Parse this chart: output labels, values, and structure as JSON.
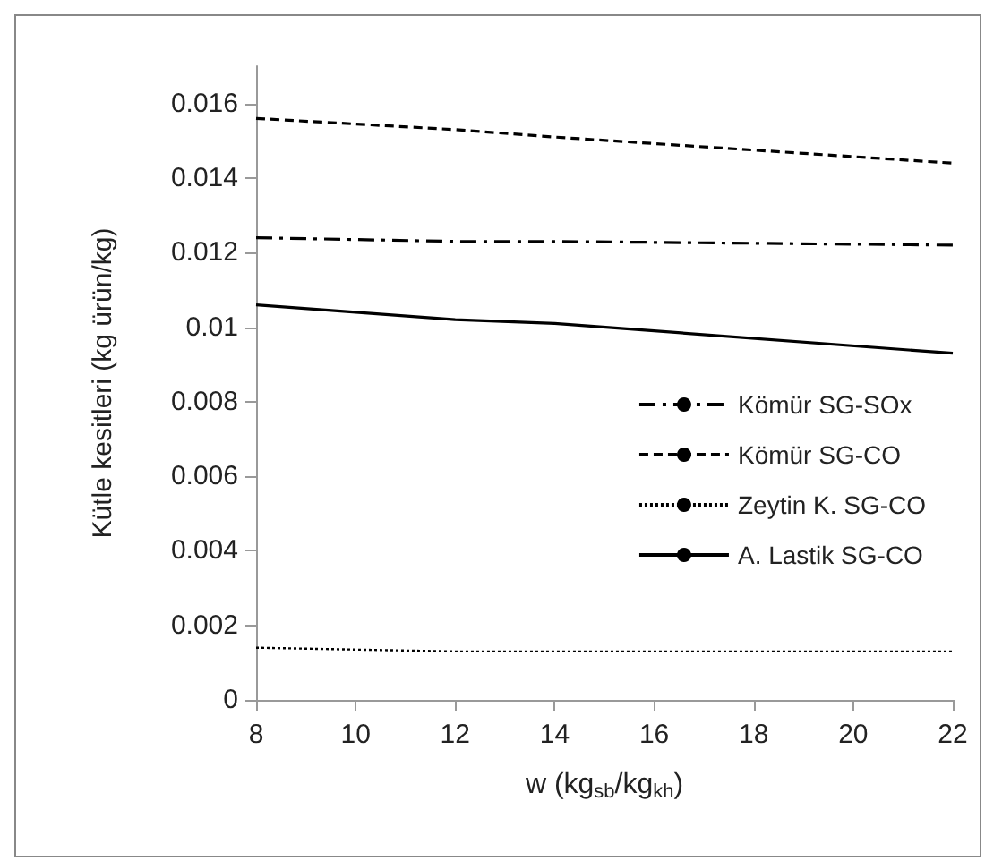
{
  "chart_data": {
    "type": "line",
    "xlabel": "w (kg$_{sb}$/kg$_{kh}$)",
    "ylabel": "Kütle kesitleri (kg ürün/kg)",
    "x": [
      8,
      12,
      14,
      22
    ],
    "series": [
      {
        "name": "Kömür SG-SOx",
        "color": "#000000",
        "line_style": "dashdot",
        "values": [
          0.0124,
          0.0123,
          0.0123,
          0.0122
        ]
      },
      {
        "name": "Kömür SG-CO",
        "color": "#000000",
        "line_style": "dashed",
        "values": [
          0.0156,
          0.0153,
          0.0151,
          0.0144
        ]
      },
      {
        "name": "Zeytin K. SG-CO",
        "color": "#000000",
        "line_style": "dotted",
        "values": [
          0.0014,
          0.0013,
          0.0013,
          0.0013
        ]
      },
      {
        "name": "A. Lastik SG-CO",
        "color": "#000000",
        "line_style": "solid",
        "values": [
          0.0106,
          0.0102,
          0.0101,
          0.0093
        ]
      }
    ],
    "xlim": [
      8,
      22
    ],
    "xticks": [
      8,
      10,
      12,
      14,
      16,
      18,
      20,
      22
    ],
    "ylim": [
      0,
      0.017
    ],
    "yticks": [
      0,
      0.002,
      0.004,
      0.006,
      0.008,
      0.01,
      0.012,
      0.014,
      0.016
    ],
    "grid": false,
    "legend": "right",
    "marker": "none"
  }
}
